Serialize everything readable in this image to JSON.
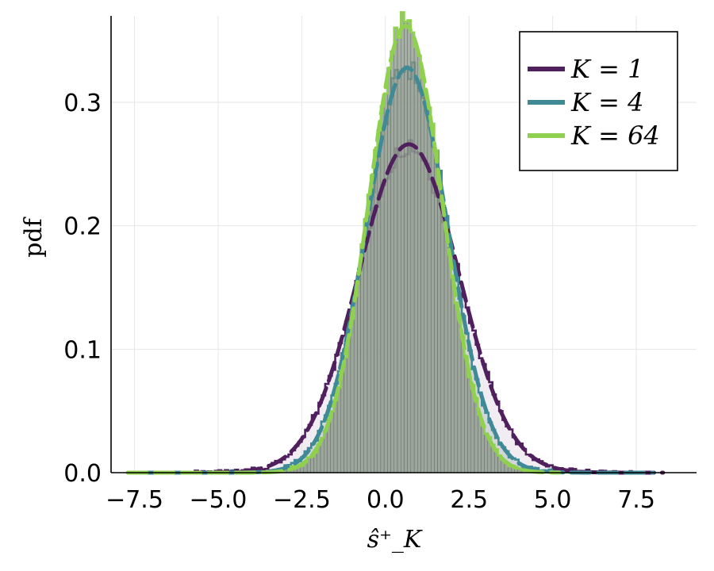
{
  "chart_data": {
    "type": "line",
    "title": "",
    "xlabel": "ŝ⁺_K",
    "ylabel": "pdf",
    "xlim": [
      -8.2,
      9.3
    ],
    "ylim": [
      0,
      0.37
    ],
    "x_ticks": [
      -7.5,
      -5.0,
      -2.5,
      0.0,
      2.5,
      5.0,
      7.5
    ],
    "x_tick_labels": [
      "−7.5",
      "−5.0",
      "−2.5",
      "0.0",
      "2.5",
      "5.0",
      "7.5"
    ],
    "y_ticks": [
      0.0,
      0.1,
      0.2,
      0.3
    ],
    "y_tick_labels": [
      "0.0",
      "0.1",
      "0.2",
      "0.3"
    ],
    "grid": true,
    "legend_position": "top-right",
    "series": [
      {
        "name": "K = 1",
        "color": "#4f1f5e",
        "mean": 0.7,
        "std": 1.5,
        "peak": 0.266,
        "x_range": [
          -7.5,
          8.3
        ],
        "histogram_fill": "#e4dde7"
      },
      {
        "name": "K = 4",
        "color": "#3f8a96",
        "mean": 0.65,
        "std": 1.22,
        "peak": 0.328,
        "x_range": [
          -7.5,
          8.0
        ],
        "histogram_fill": "#b9c5c4"
      },
      {
        "name": "K = 64",
        "color": "#8fd14f",
        "mean": 0.6,
        "std": 1.1,
        "peak": 0.362,
        "x_range": [
          -7.7,
          5.2
        ],
        "histogram_fill": "#8a9688"
      }
    ],
    "histogram_bin_width": 0.1
  }
}
